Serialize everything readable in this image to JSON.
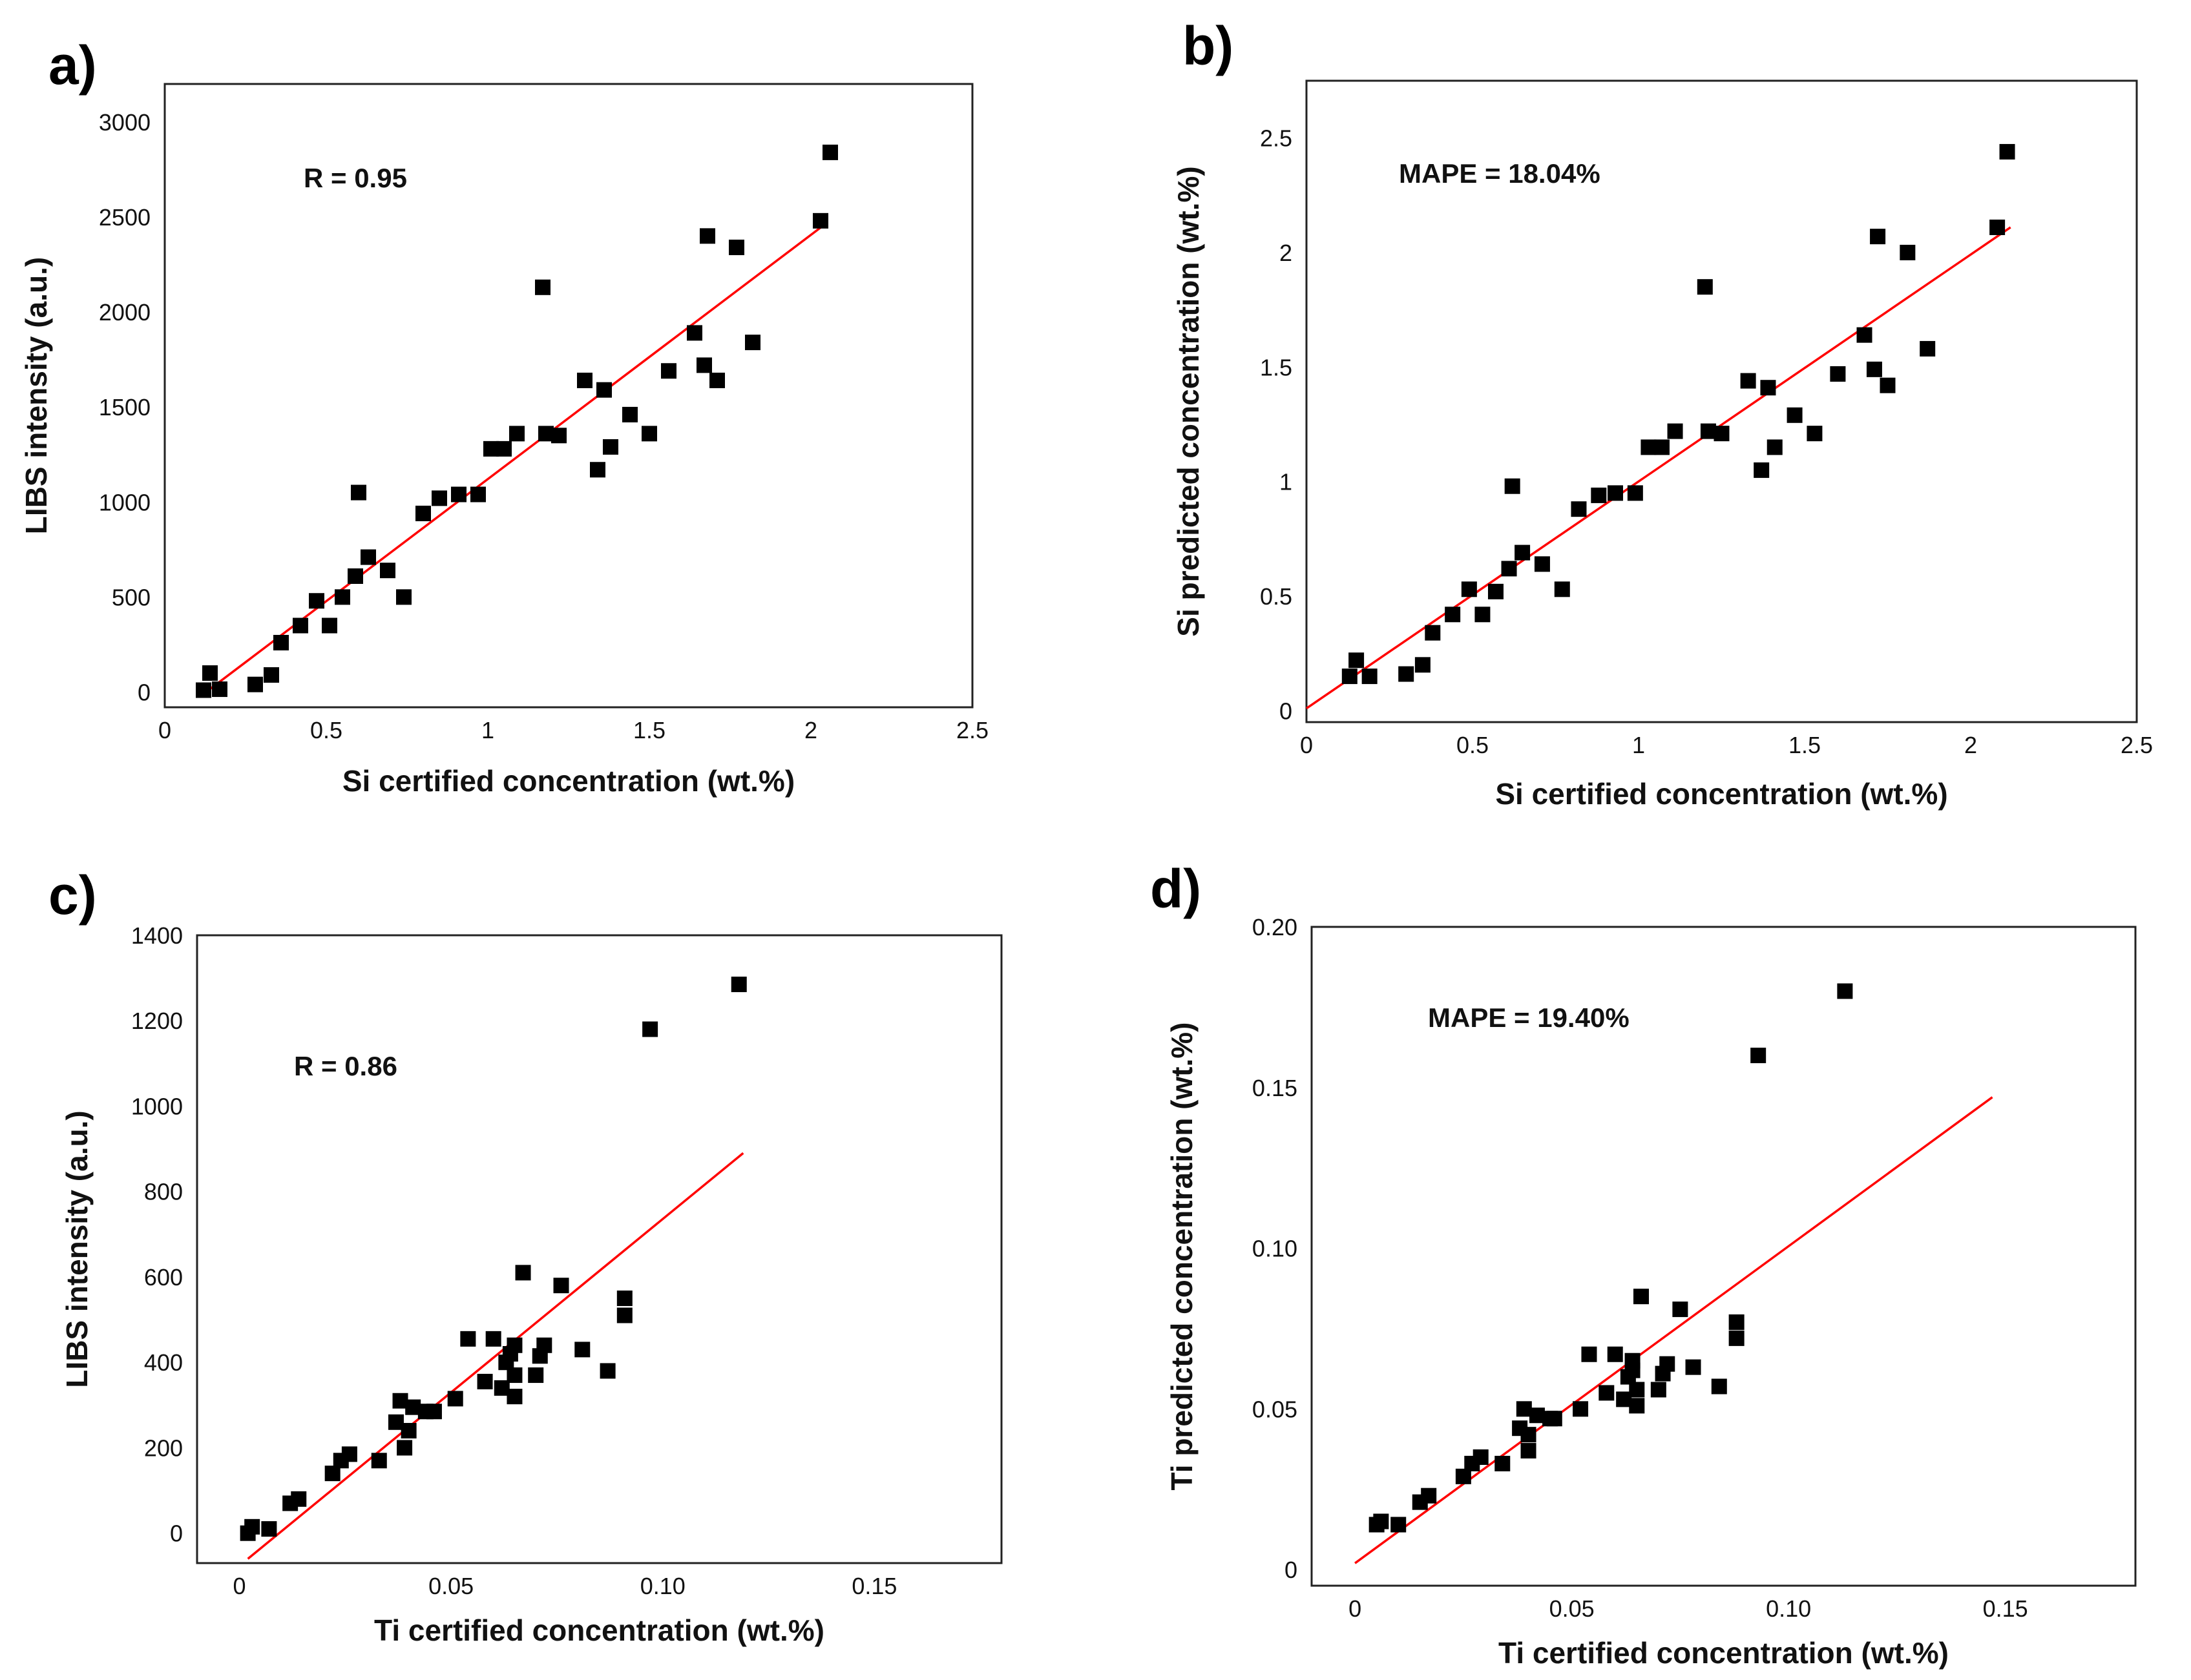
{
  "chart_data": [
    {
      "type": "scatter",
      "panel_label": "a)",
      "title": "",
      "xlabel": "Si certified concentration (wt.%)",
      "ylabel": "LIBS intensity (a.u.)",
      "xlim": [
        0,
        2.5
      ],
      "ylim": [
        -80,
        3200
      ],
      "xticks": [
        0,
        0.5,
        1,
        1.5,
        2,
        2.5
      ],
      "xtick_labels": [
        "0",
        "0.5",
        "1",
        "1.5",
        "2",
        "2.5"
      ],
      "yticks": [
        0,
        500,
        1000,
        1500,
        2000,
        2500,
        3000
      ],
      "ytick_labels": [
        "0",
        "500",
        "1000",
        "1500",
        "2000",
        "2500",
        "3000"
      ],
      "annotation": "R = 0.95",
      "fit_line": {
        "x": [
          0.12,
          2.05
        ],
        "y": [
          -10,
          2470
        ]
      },
      "points": [
        [
          0.12,
          10
        ],
        [
          0.14,
          100
        ],
        [
          0.17,
          15
        ],
        [
          0.28,
          40
        ],
        [
          0.33,
          90
        ],
        [
          0.36,
          260
        ],
        [
          0.42,
          350
        ],
        [
          0.47,
          480
        ],
        [
          0.51,
          350
        ],
        [
          0.55,
          500
        ],
        [
          0.59,
          610
        ],
        [
          0.6,
          1050
        ],
        [
          0.63,
          710
        ],
        [
          0.69,
          640
        ],
        [
          0.74,
          500
        ],
        [
          0.8,
          940
        ],
        [
          0.85,
          1020
        ],
        [
          0.91,
          1040
        ],
        [
          0.97,
          1040
        ],
        [
          1.01,
          1280
        ],
        [
          1.05,
          1280
        ],
        [
          1.09,
          1360
        ],
        [
          1.17,
          2130
        ],
        [
          1.18,
          1360
        ],
        [
          1.22,
          1350
        ],
        [
          1.3,
          1640
        ],
        [
          1.34,
          1170
        ],
        [
          1.36,
          1590
        ],
        [
          1.38,
          1290
        ],
        [
          1.44,
          1460
        ],
        [
          1.5,
          1360
        ],
        [
          1.56,
          1690
        ],
        [
          1.64,
          1890
        ],
        [
          1.67,
          1720
        ],
        [
          1.68,
          2400
        ],
        [
          1.71,
          1640
        ],
        [
          1.77,
          2340
        ],
        [
          1.82,
          1840
        ],
        [
          2.03,
          2480
        ],
        [
          2.06,
          2840
        ]
      ]
    },
    {
      "type": "scatter",
      "panel_label": "b)",
      "title": "",
      "xlabel": "Si certified concentration (wt.%)",
      "ylabel": "Si predicted concentration (wt.%)",
      "xlim": [
        0,
        2.5
      ],
      "ylim": [
        -0.05,
        2.75
      ],
      "xticks": [
        0,
        0.5,
        1,
        1.5,
        2,
        2.5
      ],
      "xtick_labels": [
        "0",
        "0.5",
        "1",
        "1.5",
        "2",
        "2.5"
      ],
      "yticks": [
        0,
        0.5,
        1,
        1.5,
        2,
        2.5
      ],
      "ytick_labels": [
        "0",
        "0.5",
        "1",
        "1.5",
        "2",
        "2.5"
      ],
      "annotation": "MAPE = 18.04%",
      "fit_line": {
        "x": [
          0,
          2.12
        ],
        "y": [
          0.01,
          2.11
        ]
      },
      "points": [
        [
          0.13,
          0.15
        ],
        [
          0.15,
          0.22
        ],
        [
          0.19,
          0.15
        ],
        [
          0.3,
          0.16
        ],
        [
          0.35,
          0.2
        ],
        [
          0.38,
          0.34
        ],
        [
          0.44,
          0.42
        ],
        [
          0.49,
          0.53
        ],
        [
          0.53,
          0.42
        ],
        [
          0.57,
          0.52
        ],
        [
          0.61,
          0.62
        ],
        [
          0.62,
          0.98
        ],
        [
          0.65,
          0.69
        ],
        [
          0.71,
          0.64
        ],
        [
          0.77,
          0.53
        ],
        [
          0.82,
          0.88
        ],
        [
          0.88,
          0.94
        ],
        [
          0.93,
          0.95
        ],
        [
          0.99,
          0.95
        ],
        [
          1.03,
          1.15
        ],
        [
          1.07,
          1.15
        ],
        [
          1.11,
          1.22
        ],
        [
          1.2,
          1.85
        ],
        [
          1.21,
          1.22
        ],
        [
          1.25,
          1.21
        ],
        [
          1.33,
          1.44
        ],
        [
          1.37,
          1.05
        ],
        [
          1.39,
          1.41
        ],
        [
          1.41,
          1.15
        ],
        [
          1.47,
          1.29
        ],
        [
          1.53,
          1.21
        ],
        [
          1.6,
          1.47
        ],
        [
          1.68,
          1.64
        ],
        [
          1.71,
          1.49
        ],
        [
          1.72,
          2.07
        ],
        [
          1.75,
          1.42
        ],
        [
          1.81,
          2.0
        ],
        [
          1.87,
          1.58
        ],
        [
          2.08,
          2.11
        ],
        [
          2.11,
          2.44
        ]
      ]
    },
    {
      "type": "scatter",
      "panel_label": "c)",
      "title": "",
      "xlabel": "Ti certified concentration (wt.%)",
      "ylabel": "LIBS intensity (a.u.)",
      "xlim": [
        -0.01,
        0.18
      ],
      "ylim": [
        -70,
        1400
      ],
      "xticks": [
        0,
        0.05,
        0.1,
        0.15
      ],
      "xtick_labels": [
        "0",
        "0.05",
        "0.10",
        "0.15"
      ],
      "yticks": [
        0,
        200,
        400,
        600,
        800,
        1000,
        1200,
        1400
      ],
      "ytick_labels": [
        "0",
        "200",
        "400",
        "600",
        "800",
        "1000",
        "1200",
        "1400"
      ],
      "annotation": "R = 0.86",
      "fit_line": {
        "x": [
          0.002,
          0.119
        ],
        "y": [
          -60,
          890
        ]
      },
      "points": [
        [
          0.002,
          0
        ],
        [
          0.003,
          15
        ],
        [
          0.007,
          10
        ],
        [
          0.012,
          70
        ],
        [
          0.014,
          80
        ],
        [
          0.022,
          140
        ],
        [
          0.024,
          170
        ],
        [
          0.026,
          185
        ],
        [
          0.033,
          170
        ],
        [
          0.037,
          260
        ],
        [
          0.038,
          310
        ],
        [
          0.039,
          200
        ],
        [
          0.04,
          240
        ],
        [
          0.041,
          295
        ],
        [
          0.044,
          285
        ],
        [
          0.046,
          285
        ],
        [
          0.051,
          315
        ],
        [
          0.054,
          455
        ],
        [
          0.058,
          355
        ],
        [
          0.06,
          455
        ],
        [
          0.062,
          340
        ],
        [
          0.063,
          400
        ],
        [
          0.064,
          420
        ],
        [
          0.065,
          440
        ],
        [
          0.065,
          370
        ],
        [
          0.065,
          320
        ],
        [
          0.067,
          610
        ],
        [
          0.07,
          370
        ],
        [
          0.071,
          415
        ],
        [
          0.072,
          440
        ],
        [
          0.076,
          580
        ],
        [
          0.081,
          430
        ],
        [
          0.087,
          380
        ],
        [
          0.091,
          550
        ],
        [
          0.091,
          510
        ],
        [
          0.097,
          1180
        ],
        [
          0.118,
          1285
        ]
      ]
    },
    {
      "type": "scatter",
      "panel_label": "d)",
      "title": "",
      "xlabel": "Ti certified concentration (wt.%)",
      "ylabel": "Ti predicted concentration (wt.%)",
      "xlim": [
        -0.01,
        0.18
      ],
      "ylim": [
        -0.005,
        0.2
      ],
      "xticks": [
        0,
        0.05,
        0.1,
        0.15
      ],
      "xtick_labels": [
        "0",
        "0.05",
        "0.10",
        "0.15"
      ],
      "yticks": [
        0,
        0.05,
        0.1,
        0.15,
        0.2
      ],
      "ytick_labels": [
        "0",
        "0.05",
        "0.10",
        "0.15",
        "0.20"
      ],
      "annotation": "MAPE = 19.40%",
      "fit_line": {
        "x": [
          0,
          0.147
        ],
        "y": [
          0.002,
          0.147
        ]
      },
      "points": [
        [
          0.005,
          0.014
        ],
        [
          0.006,
          0.015
        ],
        [
          0.01,
          0.014
        ],
        [
          0.015,
          0.021
        ],
        [
          0.017,
          0.023
        ],
        [
          0.025,
          0.029
        ],
        [
          0.027,
          0.033
        ],
        [
          0.029,
          0.035
        ],
        [
          0.034,
          0.033
        ],
        [
          0.038,
          0.044
        ],
        [
          0.039,
          0.05
        ],
        [
          0.04,
          0.037
        ],
        [
          0.04,
          0.042
        ],
        [
          0.042,
          0.048
        ],
        [
          0.045,
          0.047
        ],
        [
          0.046,
          0.047
        ],
        [
          0.052,
          0.05
        ],
        [
          0.054,
          0.067
        ],
        [
          0.058,
          0.055
        ],
        [
          0.06,
          0.067
        ],
        [
          0.062,
          0.053
        ],
        [
          0.063,
          0.06
        ],
        [
          0.064,
          0.062
        ],
        [
          0.064,
          0.065
        ],
        [
          0.065,
          0.056
        ],
        [
          0.065,
          0.051
        ],
        [
          0.066,
          0.085
        ],
        [
          0.07,
          0.056
        ],
        [
          0.071,
          0.061
        ],
        [
          0.072,
          0.064
        ],
        [
          0.075,
          0.081
        ],
        [
          0.078,
          0.063
        ],
        [
          0.084,
          0.057
        ],
        [
          0.088,
          0.077
        ],
        [
          0.088,
          0.072
        ],
        [
          0.093,
          0.16
        ],
        [
          0.113,
          0.18
        ]
      ]
    }
  ]
}
